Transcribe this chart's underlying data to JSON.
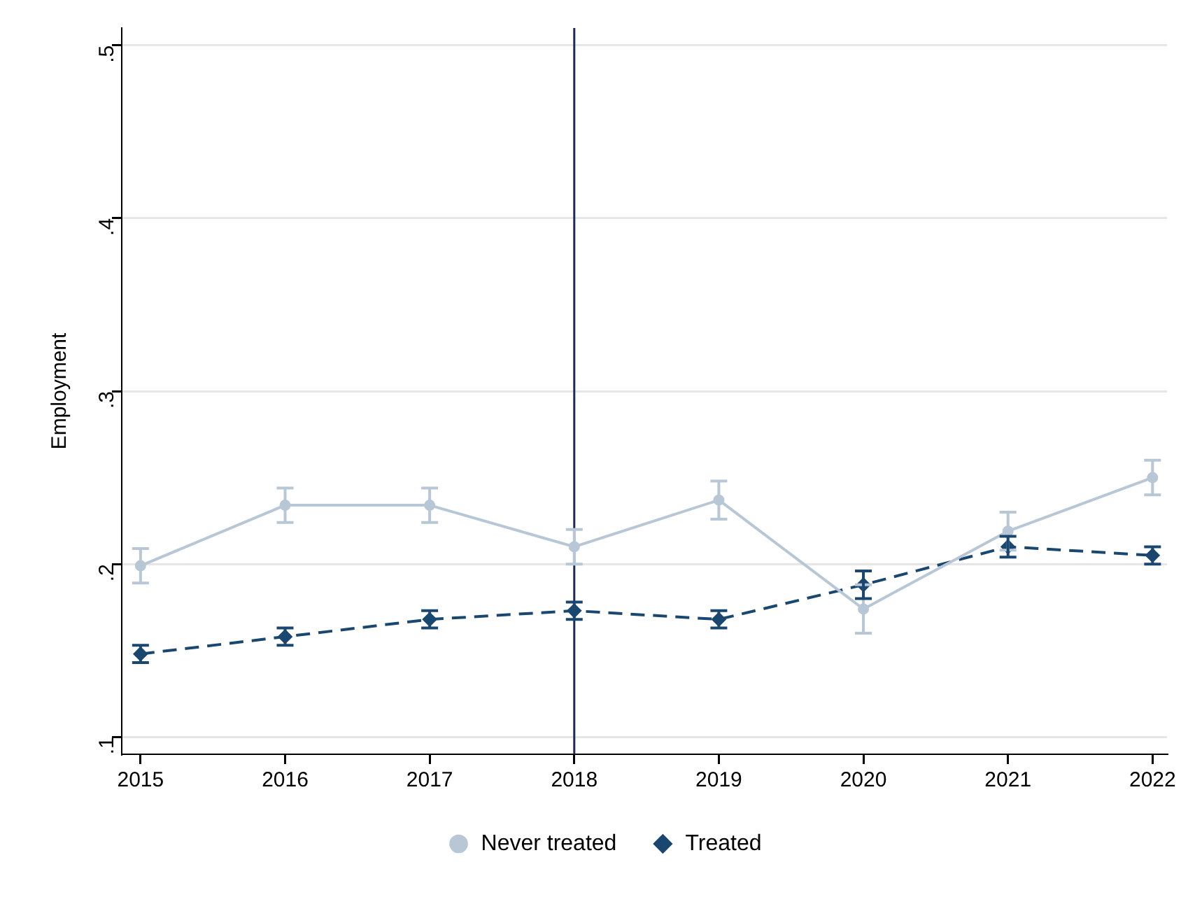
{
  "chart_data": {
    "type": "line",
    "ylabel": "Employment",
    "x": [
      2015,
      2016,
      2017,
      2018,
      2019,
      2020,
      2021,
      2022
    ],
    "xlim": [
      2014.87,
      2022.1
    ],
    "xticks": [
      2015,
      2016,
      2017,
      2018,
      2019,
      2020,
      2021,
      2022
    ],
    "ylim": [
      0.09,
      0.51
    ],
    "yticks": [
      {
        "value": 0.1,
        "label": ".1"
      },
      {
        "value": 0.2,
        "label": ".2"
      },
      {
        "value": 0.3,
        "label": ".3"
      },
      {
        "value": 0.4,
        "label": ".4"
      },
      {
        "value": 0.5,
        "label": ".5"
      }
    ],
    "grid": "y",
    "legend": "bottom",
    "ref_lines": [
      {
        "axis": "x",
        "value": 2018,
        "color": "#1e2a5a"
      }
    ],
    "series": [
      {
        "name": "Never treated",
        "color": "#b8c7d5",
        "marker": "circle",
        "line_style": "solid",
        "values": [
          0.199,
          0.234,
          0.234,
          0.21,
          0.237,
          0.174,
          0.219,
          0.25
        ],
        "errors": [
          0.01,
          0.01,
          0.01,
          0.01,
          0.011,
          0.014,
          0.011,
          0.01
        ]
      },
      {
        "name": "Treated",
        "color": "#1a476f",
        "marker": "diamond",
        "line_style": "dashed",
        "values": [
          0.148,
          0.158,
          0.168,
          0.173,
          0.168,
          0.188,
          0.21,
          0.205
        ],
        "errors": [
          0.005,
          0.005,
          0.005,
          0.005,
          0.005,
          0.008,
          0.006,
          0.005
        ]
      }
    ]
  }
}
